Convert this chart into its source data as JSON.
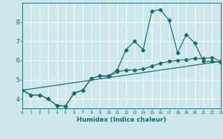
{
  "xlabel": "Humidex (Indice chaleur)",
  "bg_color": "#cce8ec",
  "grid_color": "#ffffff",
  "line_color": "#1a6b6b",
  "xlim": [
    0,
    23
  ],
  "ylim": [
    3.5,
    9.0
  ],
  "yticks": [
    4,
    5,
    6,
    7,
    8
  ],
  "xticks": [
    0,
    1,
    2,
    3,
    4,
    5,
    6,
    7,
    8,
    9,
    10,
    11,
    12,
    13,
    14,
    15,
    16,
    17,
    18,
    19,
    20,
    21,
    22,
    23
  ],
  "line1_x": [
    0,
    1,
    2,
    3,
    4,
    5,
    6,
    7,
    8,
    9,
    10,
    11,
    12,
    13,
    14,
    15,
    16,
    17,
    18,
    19,
    20,
    21,
    22,
    23
  ],
  "line1_y": [
    4.45,
    4.2,
    4.2,
    4.0,
    3.65,
    3.62,
    4.3,
    4.45,
    5.05,
    5.2,
    5.2,
    5.5,
    6.55,
    7.0,
    6.55,
    8.55,
    8.65,
    8.1,
    6.4,
    7.35,
    6.9,
    5.95,
    5.95,
    5.9
  ],
  "line2_x": [
    0,
    1,
    2,
    3,
    4,
    5,
    6,
    7,
    8,
    9,
    10,
    11,
    12,
    13,
    14,
    15,
    16,
    17,
    18,
    19,
    20,
    21,
    22,
    23
  ],
  "line2_y": [
    4.45,
    4.2,
    4.2,
    4.0,
    3.65,
    3.62,
    4.3,
    4.45,
    5.05,
    5.2,
    5.15,
    5.4,
    5.5,
    5.5,
    5.55,
    5.7,
    5.85,
    5.95,
    6.0,
    6.05,
    6.1,
    6.1,
    6.15,
    5.95
  ],
  "line3_x": [
    0,
    23
  ],
  "line3_y": [
    4.45,
    5.95
  ]
}
